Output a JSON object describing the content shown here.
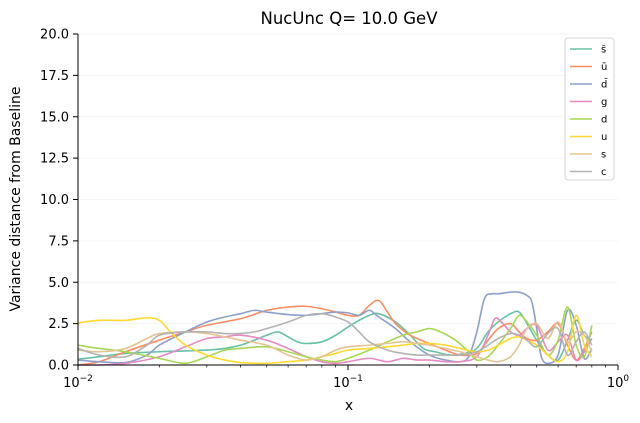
{
  "chart_data": {
    "type": "line",
    "title": "NucUnc Q= 10.0 GeV",
    "xlabel": "x",
    "ylabel": "Variance distance from Baseline",
    "xscale": "log",
    "xlim": [
      0.01,
      1.0
    ],
    "ylim": [
      0,
      20
    ],
    "x_ticks": [
      {
        "value": 0.01,
        "base": "10",
        "exp": "−2"
      },
      {
        "value": 0.1,
        "base": "10",
        "exp": "−1"
      },
      {
        "value": 1.0,
        "base": "10",
        "exp": "0"
      }
    ],
    "y_ticks": [
      {
        "value": 0.0,
        "label": "0.0"
      },
      {
        "value": 2.5,
        "label": "2.5"
      },
      {
        "value": 5.0,
        "label": "5.0"
      },
      {
        "value": 7.5,
        "label": "7.5"
      },
      {
        "value": 10.0,
        "label": "10.0"
      },
      {
        "value": 12.5,
        "label": "12.5"
      },
      {
        "value": 15.0,
        "label": "15.0"
      },
      {
        "value": 17.5,
        "label": "17.5"
      },
      {
        "value": 20.0,
        "label": "20.0"
      }
    ],
    "grid": "faint",
    "legend_position": "top-right",
    "series": [
      {
        "name": "s̄",
        "color": "#66c2a5",
        "x": [
          0.01,
          0.012,
          0.015,
          0.02,
          0.025,
          0.03,
          0.035,
          0.04,
          0.045,
          0.05,
          0.055,
          0.06,
          0.065,
          0.07,
          0.08,
          0.09,
          0.1,
          0.11,
          0.12,
          0.13,
          0.15,
          0.17,
          0.19,
          0.21,
          0.24,
          0.27,
          0.3,
          0.33,
          0.36,
          0.4,
          0.43,
          0.46,
          0.5,
          0.55,
          0.6,
          0.65,
          0.7,
          0.75,
          0.8
        ],
        "y": [
          0.35,
          0.5,
          0.7,
          0.8,
          0.85,
          0.9,
          1.0,
          1.2,
          1.5,
          1.8,
          2.0,
          1.7,
          1.4,
          1.3,
          1.4,
          1.8,
          2.3,
          2.7,
          3.0,
          3.1,
          2.6,
          1.8,
          1.0,
          0.8,
          0.6,
          0.7,
          1.0,
          2.0,
          2.6,
          3.1,
          3.2,
          2.5,
          1.5,
          0.6,
          0.3,
          1.5,
          2.7,
          1.8,
          1.5
        ]
      },
      {
        "name": "ū",
        "color": "#fc8d62",
        "x": [
          0.01,
          0.012,
          0.015,
          0.02,
          0.025,
          0.03,
          0.04,
          0.05,
          0.06,
          0.07,
          0.08,
          0.09,
          0.1,
          0.11,
          0.12,
          0.13,
          0.14,
          0.15,
          0.17,
          0.2,
          0.23,
          0.26,
          0.3,
          0.33,
          0.36,
          0.4,
          0.43,
          0.46,
          0.5,
          0.55,
          0.6,
          0.65,
          0.7,
          0.75,
          0.8
        ],
        "y": [
          0.0,
          0.2,
          0.8,
          1.5,
          2.0,
          2.4,
          2.8,
          3.3,
          3.5,
          3.55,
          3.4,
          3.2,
          3.0,
          3.0,
          3.6,
          3.9,
          3.2,
          2.5,
          1.8,
          1.3,
          0.9,
          0.6,
          0.7,
          1.5,
          2.2,
          2.5,
          2.0,
          1.6,
          1.5,
          2.0,
          2.5,
          1.2,
          0.3,
          1.0,
          2.0
        ]
      },
      {
        "name": "d̄",
        "color": "#8da0cb",
        "x": [
          0.01,
          0.012,
          0.015,
          0.018,
          0.02,
          0.025,
          0.03,
          0.035,
          0.04,
          0.045,
          0.05,
          0.06,
          0.07,
          0.08,
          0.09,
          0.1,
          0.11,
          0.12,
          0.13,
          0.15,
          0.17,
          0.2,
          0.23,
          0.26,
          0.28,
          0.3,
          0.32,
          0.34,
          0.36,
          0.4,
          0.43,
          0.46,
          0.48,
          0.5,
          0.52,
          0.55,
          0.6,
          0.65,
          0.7,
          0.75,
          0.8
        ],
        "y": [
          0.3,
          0.2,
          0.15,
          0.6,
          1.2,
          2.0,
          2.6,
          2.9,
          3.1,
          3.3,
          3.2,
          3.05,
          3.0,
          3.1,
          3.2,
          3.15,
          3.0,
          3.3,
          2.9,
          2.2,
          1.4,
          0.6,
          0.3,
          0.2,
          0.5,
          2.0,
          4.0,
          4.3,
          4.3,
          4.4,
          4.4,
          4.2,
          3.8,
          2.2,
          0.5,
          0.1,
          0.6,
          3.3,
          2.4,
          0.4,
          1.0
        ]
      },
      {
        "name": "g",
        "color": "#e78ac3",
        "x": [
          0.01,
          0.012,
          0.015,
          0.02,
          0.025,
          0.03,
          0.035,
          0.04,
          0.05,
          0.06,
          0.07,
          0.08,
          0.09,
          0.1,
          0.12,
          0.14,
          0.16,
          0.18,
          0.2,
          0.23,
          0.26,
          0.3,
          0.33,
          0.35,
          0.37,
          0.4,
          0.43,
          0.46,
          0.5,
          0.55,
          0.6,
          0.65,
          0.7,
          0.75,
          0.8
        ],
        "y": [
          0.0,
          0.0,
          0.1,
          0.5,
          1.1,
          1.6,
          1.7,
          1.8,
          1.5,
          1.0,
          0.5,
          0.2,
          0.1,
          0.2,
          0.4,
          0.2,
          0.4,
          0.3,
          0.3,
          0.2,
          0.2,
          0.5,
          1.8,
          2.8,
          2.6,
          2.0,
          1.8,
          2.2,
          2.4,
          0.9,
          1.4,
          1.8,
          0.3,
          0.8,
          1.6
        ]
      },
      {
        "name": "d",
        "color": "#a6d854",
        "x": [
          0.01,
          0.012,
          0.015,
          0.02,
          0.025,
          0.03,
          0.035,
          0.04,
          0.05,
          0.06,
          0.07,
          0.08,
          0.09,
          0.1,
          0.12,
          0.14,
          0.16,
          0.18,
          0.2,
          0.22,
          0.25,
          0.28,
          0.3,
          0.33,
          0.36,
          0.4,
          0.43,
          0.46,
          0.5,
          0.55,
          0.6,
          0.65,
          0.7,
          0.75,
          0.8
        ],
        "y": [
          1.2,
          1.0,
          0.8,
          0.4,
          0.1,
          0.5,
          0.9,
          1.0,
          1.1,
          0.8,
          0.5,
          0.3,
          0.2,
          0.4,
          0.9,
          1.4,
          1.8,
          2.0,
          2.2,
          2.0,
          1.5,
          0.8,
          0.3,
          0.5,
          1.2,
          2.2,
          3.0,
          2.6,
          1.8,
          0.6,
          1.5,
          3.5,
          1.2,
          0.5,
          2.4
        ]
      },
      {
        "name": "u",
        "color": "#ffd92f",
        "x": [
          0.01,
          0.012,
          0.015,
          0.018,
          0.02,
          0.022,
          0.025,
          0.03,
          0.035,
          0.04,
          0.05,
          0.06,
          0.07,
          0.08,
          0.09,
          0.1,
          0.12,
          0.14,
          0.16,
          0.18,
          0.2,
          0.23,
          0.26,
          0.3,
          0.33,
          0.36,
          0.4,
          0.43,
          0.46,
          0.5,
          0.55,
          0.6,
          0.65,
          0.7,
          0.75,
          0.8
        ],
        "y": [
          2.55,
          2.7,
          2.7,
          2.85,
          2.7,
          2.0,
          1.2,
          0.6,
          0.3,
          0.15,
          0.1,
          0.2,
          0.3,
          0.5,
          0.7,
          0.9,
          1.0,
          1.1,
          1.2,
          1.3,
          1.3,
          1.2,
          1.0,
          0.8,
          0.9,
          1.2,
          1.6,
          1.7,
          1.5,
          1.2,
          0.6,
          0.2,
          0.8,
          3.0,
          1.2,
          0.5
        ]
      },
      {
        "name": "s",
        "color": "#e5c494",
        "x": [
          0.01,
          0.012,
          0.015,
          0.018,
          0.02,
          0.025,
          0.03,
          0.035,
          0.04,
          0.05,
          0.06,
          0.07,
          0.08,
          0.09,
          0.1,
          0.12,
          0.14,
          0.16,
          0.18,
          0.2,
          0.23,
          0.26,
          0.3,
          0.33,
          0.36,
          0.4,
          0.43,
          0.46,
          0.5,
          0.55,
          0.6,
          0.65,
          0.7,
          0.75,
          0.8
        ],
        "y": [
          0.9,
          0.8,
          1.0,
          1.6,
          1.9,
          2.0,
          1.9,
          1.7,
          1.5,
          1.2,
          0.6,
          0.3,
          0.5,
          0.9,
          1.1,
          1.2,
          1.3,
          1.4,
          1.3,
          1.2,
          1.0,
          0.8,
          0.5,
          0.3,
          0.2,
          0.5,
          1.2,
          2.2,
          2.5,
          1.6,
          2.6,
          1.4,
          2.0,
          1.8,
          0.8
        ]
      },
      {
        "name": "c",
        "color": "#b3b3b3",
        "x": [
          0.01,
          0.012,
          0.015,
          0.018,
          0.02,
          0.025,
          0.03,
          0.035,
          0.04,
          0.045,
          0.05,
          0.06,
          0.07,
          0.08,
          0.09,
          0.1,
          0.11,
          0.12,
          0.14,
          0.16,
          0.18,
          0.2,
          0.23,
          0.26,
          0.3,
          0.33,
          0.36,
          0.4,
          0.43,
          0.46,
          0.5,
          0.55,
          0.6,
          0.65,
          0.7,
          0.75,
          0.8
        ],
        "y": [
          1.0,
          0.6,
          0.5,
          1.2,
          1.8,
          2.0,
          2.0,
          1.9,
          1.9,
          2.0,
          2.2,
          2.6,
          3.0,
          3.1,
          2.9,
          2.6,
          2.0,
          1.4,
          0.9,
          0.7,
          0.6,
          0.6,
          0.6,
          0.6,
          0.8,
          1.2,
          1.6,
          1.9,
          1.8,
          1.5,
          1.1,
          1.9,
          2.2,
          0.6,
          1.4,
          2.0,
          1.2
        ]
      }
    ]
  }
}
